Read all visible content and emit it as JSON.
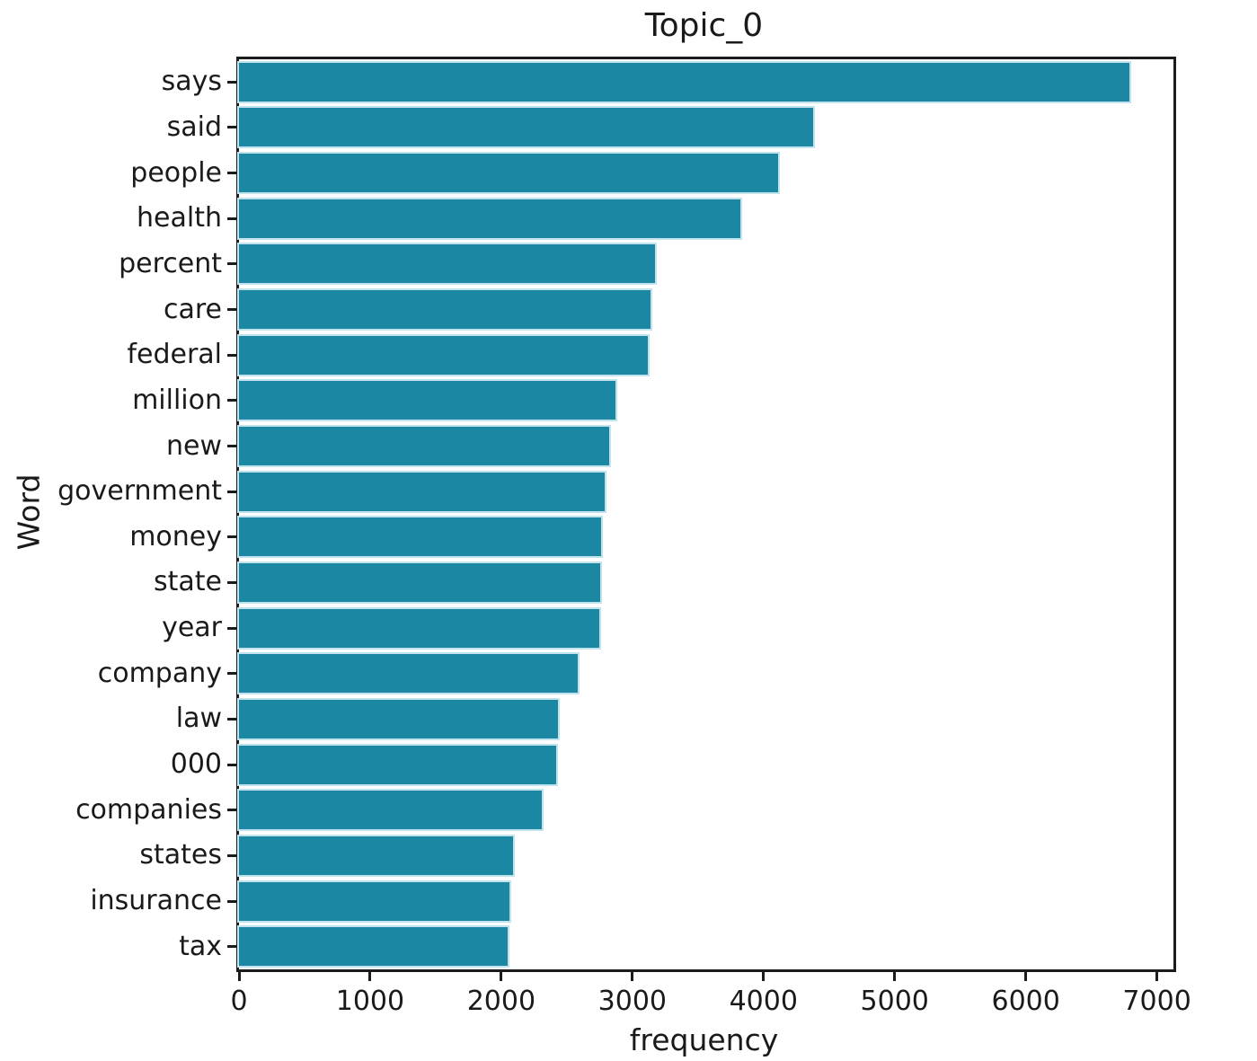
{
  "title": "Topic_0",
  "chart_data": {
    "type": "bar",
    "orientation": "horizontal",
    "title": "Topic_0",
    "xlabel": "frequency",
    "ylabel": "Word",
    "categories": [
      "says",
      "said",
      "people",
      "health",
      "percent",
      "care",
      "federal",
      "million",
      "new",
      "government",
      "money",
      "state",
      "year",
      "company",
      "law",
      "000",
      "companies",
      "states",
      "insurance",
      "tax"
    ],
    "values": [
      6790,
      4380,
      4110,
      3820,
      3170,
      3140,
      3120,
      2870,
      2820,
      2790,
      2760,
      2755,
      2750,
      2580,
      2430,
      2420,
      2310,
      2090,
      2060,
      2050
    ],
    "x_ticks": [
      0,
      1000,
      2000,
      3000,
      4000,
      5000,
      6000,
      7000
    ],
    "xlim": [
      0,
      7126
    ],
    "bar_color": "#1c87a3",
    "grid": false,
    "legend": false
  }
}
